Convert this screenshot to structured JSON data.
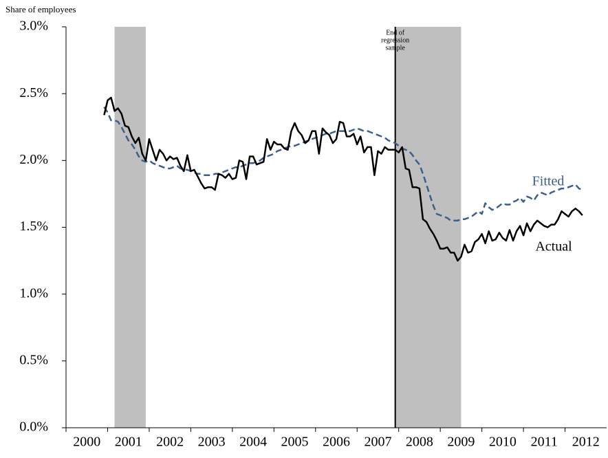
{
  "chart_data": {
    "type": "line",
    "y_axis_label": "Share of employees",
    "xlim": [
      2000,
      2013
    ],
    "xticks": [
      {
        "value": 2000.5,
        "label": "2000"
      },
      {
        "value": 2001.5,
        "label": "2001"
      },
      {
        "value": 2002.5,
        "label": "2002"
      },
      {
        "value": 2003.5,
        "label": "2003"
      },
      {
        "value": 2004.5,
        "label": "2004"
      },
      {
        "value": 2005.5,
        "label": "2005"
      },
      {
        "value": 2006.5,
        "label": "2006"
      },
      {
        "value": 2007.5,
        "label": "2007"
      },
      {
        "value": 2008.5,
        "label": "2008"
      },
      {
        "value": 2009.5,
        "label": "2009"
      },
      {
        "value": 2010.5,
        "label": "2010"
      },
      {
        "value": 2011.5,
        "label": "2011"
      },
      {
        "value": 2012.5,
        "label": "2012"
      }
    ],
    "ylim": [
      0,
      3
    ],
    "yticks": [
      {
        "value": 0,
        "label": "0.0%"
      },
      {
        "value": 0.5,
        "label": "0.5%"
      },
      {
        "value": 1,
        "label": "1.0%"
      },
      {
        "value": 1.5,
        "label": "1.5%"
      },
      {
        "value": 2,
        "label": "2.0%"
      },
      {
        "value": 2.5,
        "label": "2.5%"
      },
      {
        "value": 3,
        "label": "3.0%"
      }
    ],
    "grid": false,
    "shaded_periods": [
      [
        2001.167,
        2001.917
      ],
      [
        2007.917,
        2009.5
      ]
    ],
    "shade_color": "#bfbfbf",
    "annotation": {
      "x": 2007.917,
      "lines": [
        "End of",
        "regression",
        "sample"
      ]
    },
    "x": [
      2000.917,
      2001,
      2001.083,
      2001.167,
      2001.25,
      2001.333,
      2001.417,
      2001.5,
      2001.583,
      2001.667,
      2001.75,
      2001.833,
      2001.917,
      2002,
      2002.083,
      2002.167,
      2002.25,
      2002.333,
      2002.417,
      2002.5,
      2002.583,
      2002.667,
      2002.75,
      2002.833,
      2002.917,
      2003,
      2003.083,
      2003.167,
      2003.25,
      2003.333,
      2003.417,
      2003.5,
      2003.583,
      2003.667,
      2003.75,
      2003.833,
      2003.917,
      2004,
      2004.083,
      2004.167,
      2004.25,
      2004.333,
      2004.417,
      2004.5,
      2004.583,
      2004.667,
      2004.75,
      2004.833,
      2004.917,
      2005,
      2005.083,
      2005.167,
      2005.25,
      2005.333,
      2005.417,
      2005.5,
      2005.583,
      2005.667,
      2005.75,
      2005.833,
      2005.917,
      2006,
      2006.083,
      2006.167,
      2006.25,
      2006.333,
      2006.417,
      2006.5,
      2006.583,
      2006.667,
      2006.75,
      2006.833,
      2006.917,
      2007,
      2007.083,
      2007.167,
      2007.25,
      2007.333,
      2007.417,
      2007.5,
      2007.583,
      2007.667,
      2007.75,
      2007.833,
      2007.917,
      2008,
      2008.083,
      2008.167,
      2008.25,
      2008.333,
      2008.417,
      2008.5,
      2008.583,
      2008.667,
      2008.75,
      2008.833,
      2008.917,
      2009,
      2009.083,
      2009.167,
      2009.25,
      2009.333,
      2009.417,
      2009.5,
      2009.583,
      2009.667,
      2009.75,
      2009.833,
      2009.917,
      2010,
      2010.083,
      2010.167,
      2010.25,
      2010.333,
      2010.417,
      2010.5,
      2010.583,
      2010.667,
      2010.75,
      2010.833,
      2010.917,
      2011,
      2011.083,
      2011.167,
      2011.25,
      2011.333,
      2011.417,
      2011.5,
      2011.583,
      2011.667,
      2011.75,
      2011.833,
      2011.917,
      2012,
      2012.083,
      2012.167,
      2012.25,
      2012.333,
      2012.417
    ],
    "series": [
      {
        "name": "Fitted",
        "color": "#3b5f8c",
        "dashed": true,
        "values": [
          2.4,
          2.36,
          2.3,
          2.3,
          2.29,
          2.25,
          2.2,
          2.15,
          2.12,
          2.08,
          2.03,
          2.0,
          1.99,
          2.0,
          1.98,
          1.97,
          1.96,
          1.95,
          1.94,
          1.94,
          1.95,
          1.96,
          1.94,
          1.93,
          1.93,
          1.92,
          1.91,
          1.9,
          1.9,
          1.89,
          1.89,
          1.89,
          1.9,
          1.9,
          1.91,
          1.92,
          1.93,
          1.94,
          1.95,
          1.95,
          1.96,
          1.97,
          1.98,
          1.98,
          1.99,
          2.0,
          2.02,
          2.03,
          2.04,
          2.05,
          2.07,
          2.08,
          2.09,
          2.1,
          2.11,
          2.11,
          2.12,
          2.13,
          2.14,
          2.15,
          2.16,
          2.17,
          2.18,
          2.19,
          2.2,
          2.2,
          2.21,
          2.22,
          2.22,
          2.22,
          2.22,
          2.22,
          2.23,
          2.24,
          2.23,
          2.22,
          2.22,
          2.21,
          2.2,
          2.19,
          2.18,
          2.17,
          2.15,
          2.14,
          2.13,
          2.11,
          2.09,
          2.08,
          2.07,
          2.04,
          2.0,
          1.97,
          1.9,
          1.82,
          1.74,
          1.66,
          1.6,
          1.59,
          1.58,
          1.57,
          1.55,
          1.55,
          1.55,
          1.56,
          1.56,
          1.57,
          1.58,
          1.6,
          1.62,
          1.6,
          1.68,
          1.65,
          1.63,
          1.64,
          1.66,
          1.68,
          1.67,
          1.67,
          1.69,
          1.7,
          1.72,
          1.69,
          1.73,
          1.72,
          1.7,
          1.74,
          1.76,
          1.75,
          1.74,
          1.76,
          1.77,
          1.78,
          1.79,
          1.79,
          1.8,
          1.81,
          1.82,
          1.79,
          1.78
        ]
      },
      {
        "name": "Actual",
        "color": "#000000",
        "dashed": false,
        "values": [
          2.34,
          2.45,
          2.47,
          2.37,
          2.39,
          2.35,
          2.26,
          2.25,
          2.18,
          2.13,
          2.17,
          2.05,
          2.0,
          2.16,
          2.08,
          2.0,
          2.08,
          2.05,
          2.0,
          2.03,
          2.01,
          2.02,
          1.96,
          1.92,
          2.04,
          1.92,
          1.93,
          1.88,
          1.83,
          1.79,
          1.8,
          1.8,
          1.78,
          1.9,
          1.89,
          1.87,
          1.9,
          1.86,
          1.87,
          2.0,
          1.99,
          1.86,
          2.03,
          2.03,
          1.97,
          1.98,
          1.99,
          2.16,
          2.08,
          2.14,
          2.12,
          2.12,
          2.09,
          2.08,
          2.22,
          2.28,
          2.22,
          2.19,
          2.13,
          2.15,
          2.22,
          2.22,
          2.05,
          2.24,
          2.21,
          2.19,
          2.13,
          2.16,
          2.29,
          2.28,
          2.18,
          2.18,
          2.2,
          2.12,
          2.18,
          2.06,
          2.1,
          2.1,
          1.89,
          2.07,
          2.05,
          2.1,
          2.08,
          2.08,
          2.08,
          2.06,
          2.1,
          1.94,
          1.93,
          1.8,
          1.8,
          1.79,
          1.56,
          1.54,
          1.49,
          1.45,
          1.4,
          1.34,
          1.34,
          1.35,
          1.31,
          1.31,
          1.25,
          1.28,
          1.37,
          1.31,
          1.32,
          1.39,
          1.41,
          1.45,
          1.38,
          1.47,
          1.4,
          1.41,
          1.46,
          1.42,
          1.4,
          1.48,
          1.4,
          1.47,
          1.51,
          1.44,
          1.53,
          1.47,
          1.52,
          1.55,
          1.53,
          1.51,
          1.5,
          1.52,
          1.52,
          1.56,
          1.62,
          1.6,
          1.58,
          1.62,
          1.64,
          1.62,
          1.59
        ]
      }
    ]
  }
}
